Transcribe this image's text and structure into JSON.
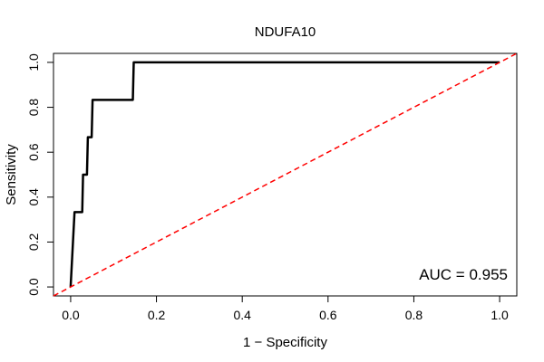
{
  "chart_data": {
    "type": "line",
    "title": "NDUFA10",
    "xlabel": "1 − Specificity",
    "ylabel": "Sensitivity",
    "xlim": [
      -0.04,
      1.04
    ],
    "ylim": [
      -0.04,
      1.04
    ],
    "xticks": [
      {
        "value": 0.0,
        "label": "0.0"
      },
      {
        "value": 0.2,
        "label": "0.2"
      },
      {
        "value": 0.4,
        "label": "0.4"
      },
      {
        "value": 0.6,
        "label": "0.6"
      },
      {
        "value": 0.8,
        "label": "0.8"
      },
      {
        "value": 1.0,
        "label": "1.0"
      }
    ],
    "yticks": [
      {
        "value": 0.0,
        "label": "0.0"
      },
      {
        "value": 0.2,
        "label": "0.2"
      },
      {
        "value": 0.4,
        "label": "0.4"
      },
      {
        "value": 0.6,
        "label": "0.6"
      },
      {
        "value": 0.8,
        "label": "0.8"
      },
      {
        "value": 1.0,
        "label": "1.0"
      }
    ],
    "grid": false,
    "series": [
      {
        "color": "#000000",
        "line_style": "solid",
        "x": [
          0.0,
          0.009,
          0.027,
          0.029,
          0.038,
          0.04,
          0.049,
          0.051,
          0.145,
          0.147,
          1.0
        ],
        "y": [
          0.0,
          0.333,
          0.333,
          0.5,
          0.5,
          0.667,
          0.667,
          0.833,
          0.833,
          1.0,
          1.0
        ]
      },
      {
        "color": "#ff0000",
        "line_style": "dashed",
        "x": [
          -0.04,
          1.04
        ],
        "y": [
          -0.04,
          1.04
        ]
      }
    ],
    "annotations": [
      {
        "text": "AUC = 0.955",
        "position": "bottom-right"
      }
    ]
  }
}
